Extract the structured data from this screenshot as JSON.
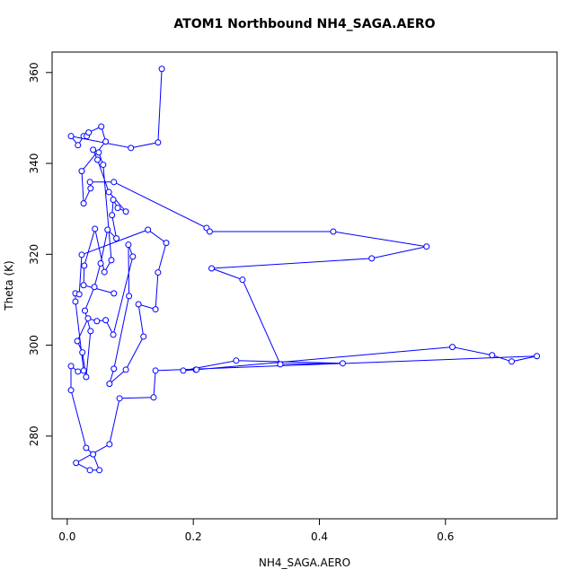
{
  "chart_data": {
    "type": "line",
    "title": "ATOM1 Northbound NH4_SAGA.AERO",
    "x_label": "NH4_SAGA.AERO",
    "y_label": "Theta (K)",
    "color": "#0000ff",
    "x": [
      0.15,
      0.144,
      0.101,
      0.006,
      0.017,
      0.026,
      0.031,
      0.034,
      0.054,
      0.061,
      0.023,
      0.026,
      0.037,
      0.036,
      0.074,
      0.221,
      0.226,
      0.422,
      0.57,
      0.483,
      0.229,
      0.278,
      0.338,
      0.437,
      0.268,
      0.184,
      0.204,
      0.205,
      0.611,
      0.674,
      0.705,
      0.745,
      0.14,
      0.137,
      0.083,
      0.067,
      0.014,
      0.036,
      0.051,
      0.041,
      0.03,
      0.006,
      0.006,
      0.017,
      0.026,
      0.013,
      0.013,
      0.019,
      0.023,
      0.128,
      0.157,
      0.144,
      0.14,
      0.113,
      0.121,
      0.093,
      0.067,
      0.074,
      0.098,
      0.097,
      0.104,
      0.073,
      0.061,
      0.047,
      0.033,
      0.016,
      0.024,
      0.03,
      0.037,
      0.028,
      0.043,
      0.053,
      0.064,
      0.078,
      0.071,
      0.073,
      0.08,
      0.093,
      0.066,
      0.048,
      0.041,
      0.05,
      0.057,
      0.07,
      0.059,
      0.044,
      0.027,
      0.026,
      0.074
    ],
    "values": [
      360.8,
      344.6,
      343.4,
      346.0,
      344.0,
      346.0,
      346.0,
      346.8,
      348.1,
      344.8,
      338.3,
      331.2,
      334.5,
      335.9,
      335.9,
      325.8,
      325.0,
      325.0,
      321.7,
      319.1,
      316.9,
      314.4,
      295.8,
      296.0,
      296.6,
      294.4,
      294.6,
      294.6,
      299.6,
      297.8,
      296.4,
      297.6,
      294.4,
      288.5,
      288.3,
      278.2,
      274.1,
      272.5,
      272.5,
      276.0,
      277.4,
      290.1,
      295.4,
      294.2,
      294.4,
      309.6,
      311.4,
      311.2,
      319.9,
      325.4,
      322.5,
      316.0,
      307.9,
      309.0,
      301.9,
      294.6,
      291.5,
      294.8,
      310.8,
      322.1,
      319.5,
      302.3,
      305.5,
      305.3,
      305.9,
      300.9,
      298.4,
      293.0,
      303.1,
      307.6,
      312.8,
      318.0,
      325.4,
      323.5,
      328.6,
      332.0,
      330.2,
      329.4,
      333.7,
      340.8,
      343.0,
      342.4,
      339.7,
      318.7,
      316.1,
      325.6,
      317.5,
      313.2,
      311.4
    ],
    "xlim": [
      -0.024,
      0.777
    ],
    "ylim": [
      261.8,
      364.5
    ],
    "xticks": [
      {
        "value": 0,
        "label": "0.0"
      },
      0.2,
      0.4,
      0.6
    ],
    "yticks": [
      280,
      300,
      320,
      340,
      360
    ]
  }
}
